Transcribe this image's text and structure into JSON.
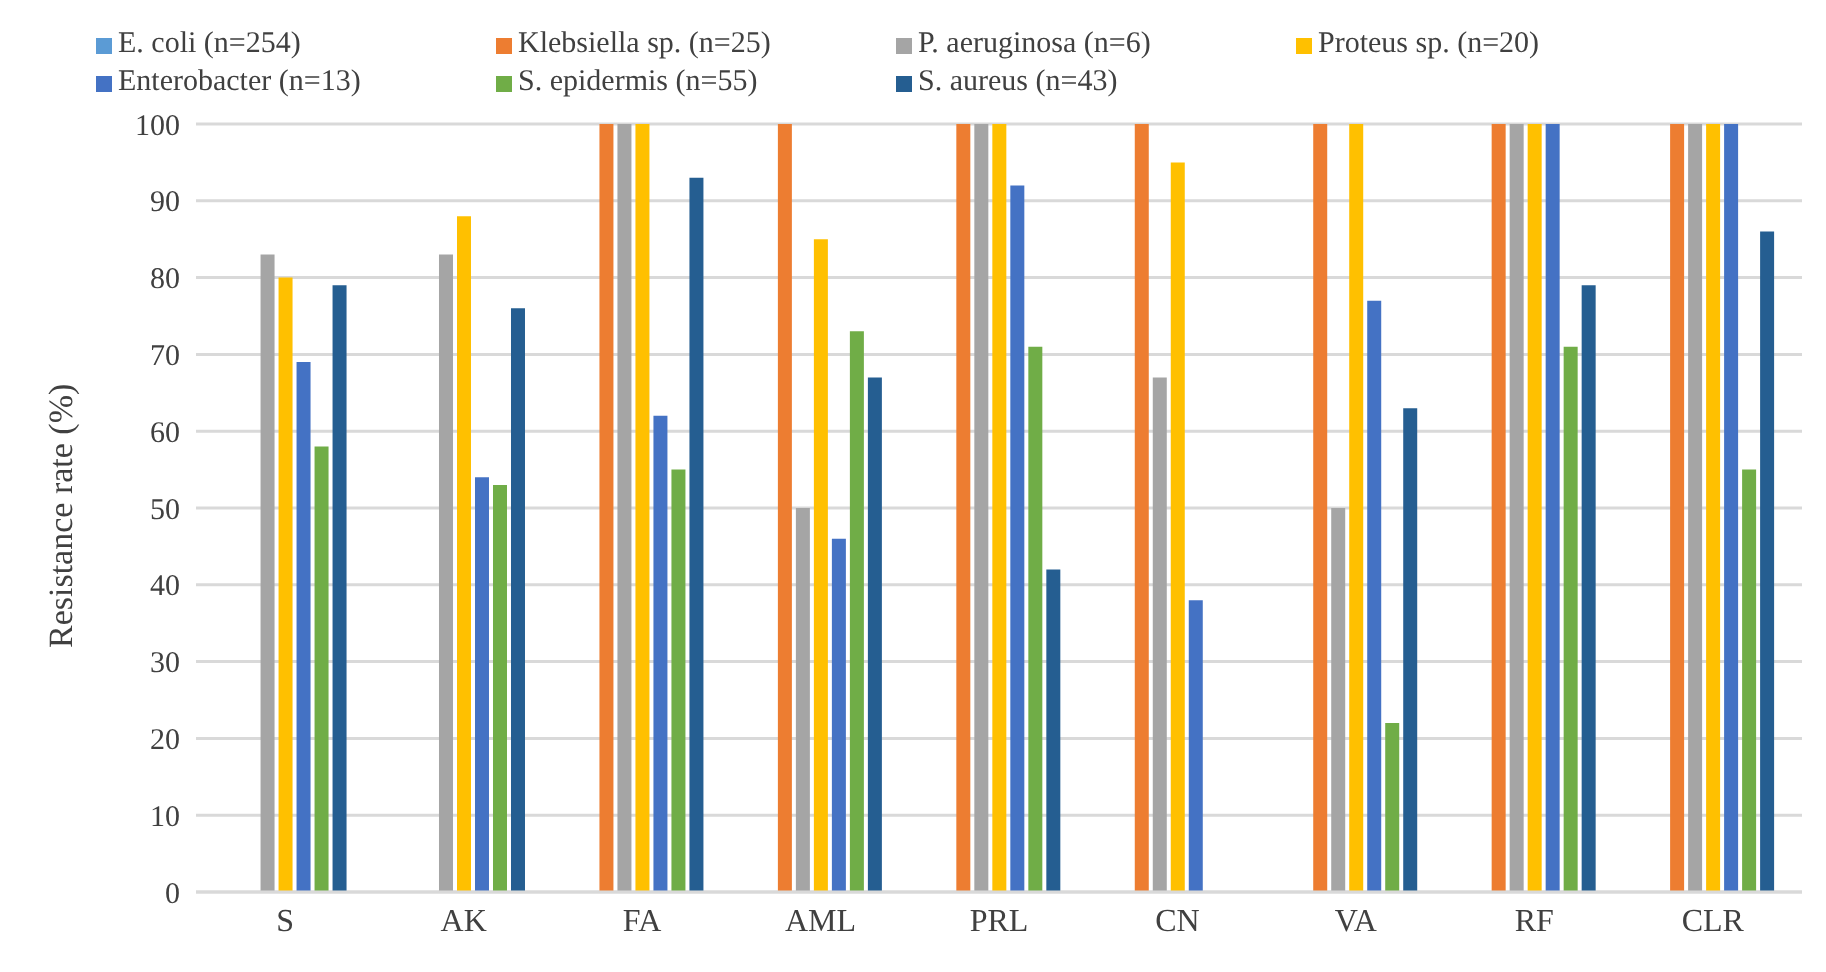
{
  "chart_data": {
    "type": "bar",
    "ylabel": "Resistance rate (%)",
    "categories": [
      "S",
      "AK",
      "FA",
      "AML",
      "PRL",
      "CN",
      "VA",
      "RF",
      "CLR"
    ],
    "series": [
      {
        "name": "E. coli (n=254)",
        "color": "#5b9bd5",
        "values": [
          0,
          0,
          0,
          0,
          0,
          0,
          0,
          0,
          0
        ]
      },
      {
        "name": "Klebsiella sp. (n=25)",
        "color": "#ed7d31",
        "values": [
          0,
          0,
          100,
          100,
          100,
          100,
          100,
          100,
          100
        ]
      },
      {
        "name": "P. aeruginosa (n=6)",
        "color": "#a5a5a5",
        "values": [
          83,
          83,
          100,
          50,
          100,
          67,
          50,
          100,
          100
        ]
      },
      {
        "name": "Proteus sp. (n=20)",
        "color": "#ffc000",
        "values": [
          80,
          88,
          100,
          85,
          100,
          95,
          100,
          100,
          100
        ]
      },
      {
        "name": "Enterobacter (n=13)",
        "color": "#4472c4",
        "values": [
          69,
          54,
          62,
          46,
          92,
          38,
          77,
          100,
          100
        ]
      },
      {
        "name": "S. epidermis (n=55)",
        "color": "#70ad47",
        "values": [
          58,
          53,
          55,
          73,
          71,
          0,
          22,
          71,
          55
        ]
      },
      {
        "name": "S. aureus (n=43)",
        "color": "#255e91",
        "values": [
          79,
          76,
          93,
          67,
          42,
          0,
          63,
          79,
          86
        ]
      }
    ],
    "ylim": [
      0,
      100
    ],
    "yticks": [
      0,
      10,
      20,
      30,
      40,
      50,
      60,
      70,
      80,
      90,
      100
    ],
    "grid": "y",
    "legend": "top"
  }
}
